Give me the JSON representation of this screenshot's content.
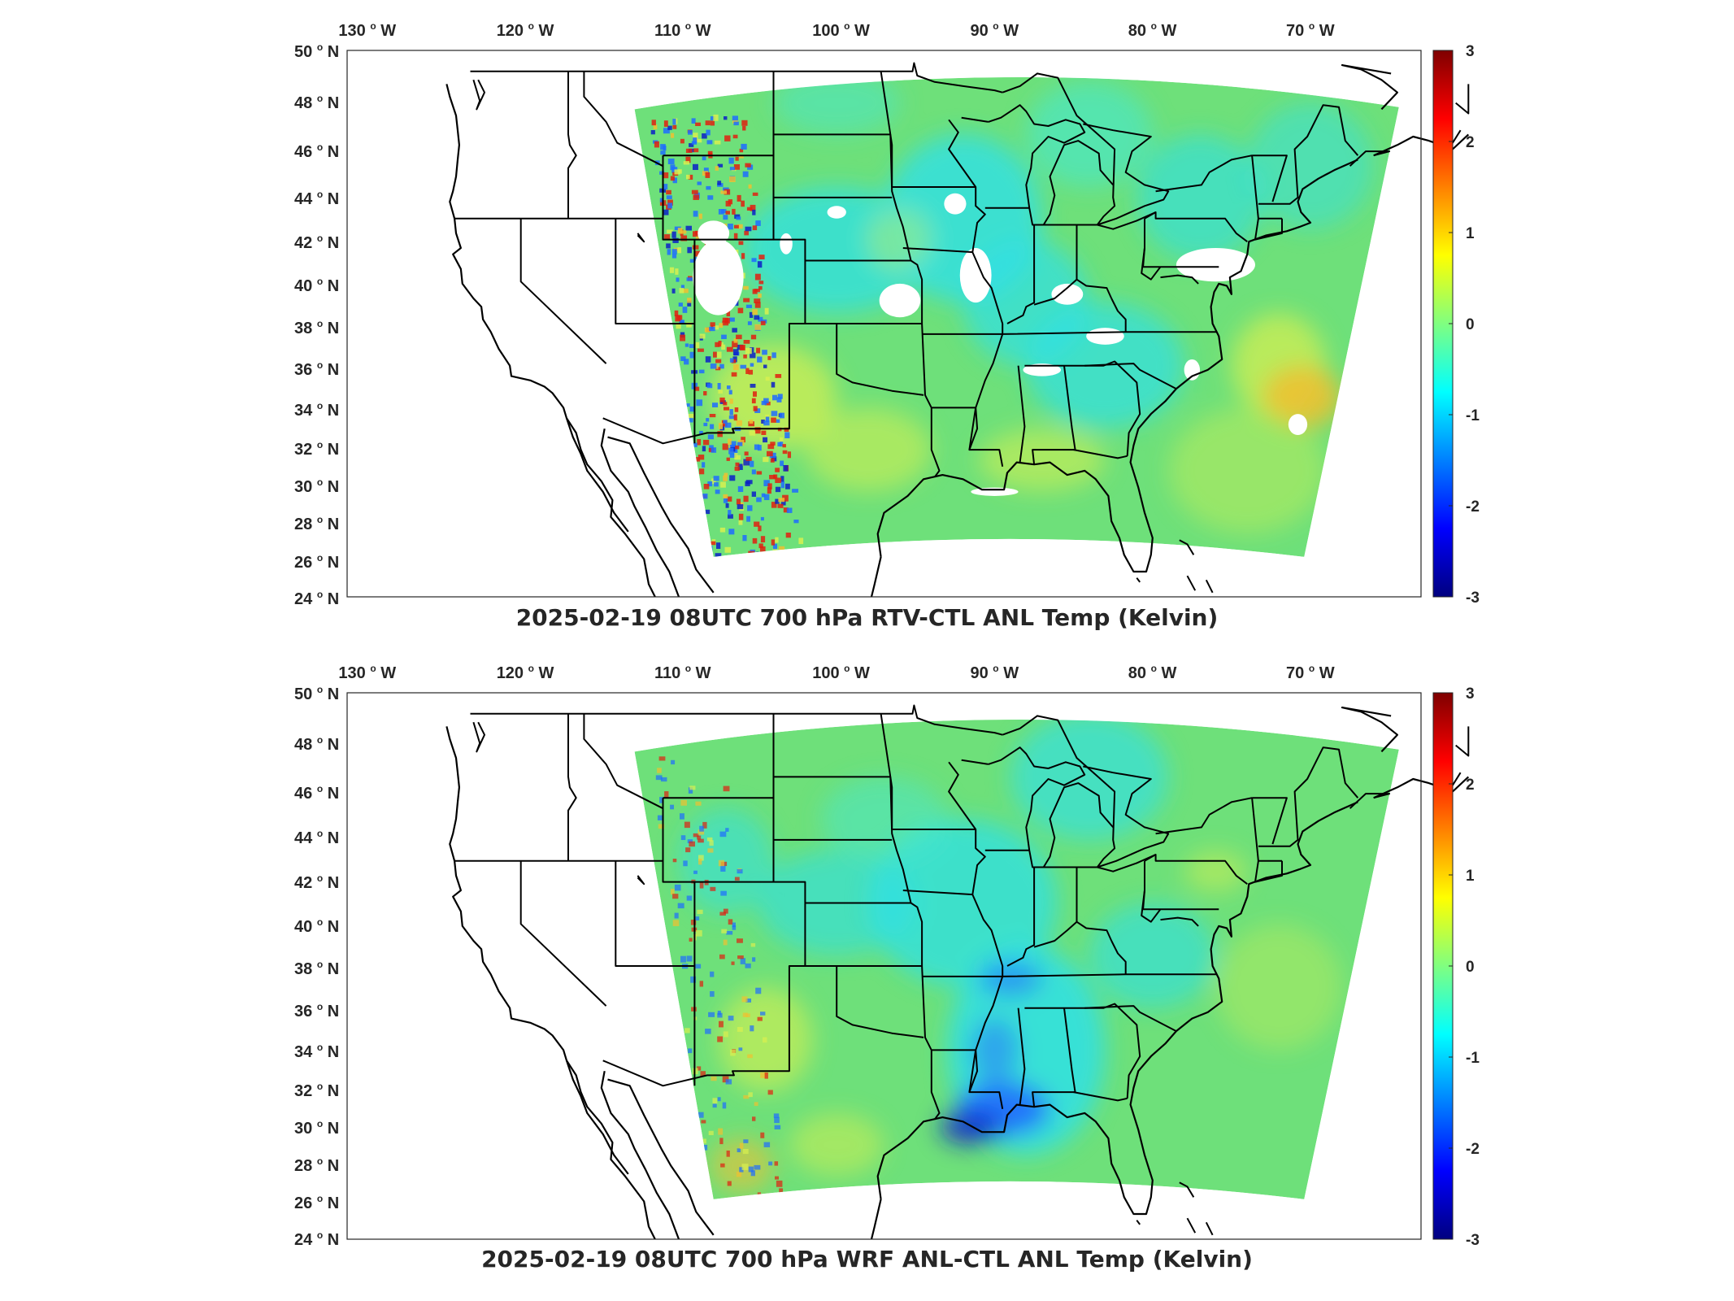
{
  "panels": [
    {
      "title": "2025-02-19 08UTC 700 hPa RTV-CTL ANL Temp (Kelvin)",
      "variant": "rtv"
    },
    {
      "title": "2025-02-19 08UTC 700 hPa WRF ANL-CTL ANL Temp (Kelvin)",
      "variant": "wrf"
    }
  ],
  "lon_ticks": [
    {
      "value": "130",
      "suffix": "W"
    },
    {
      "value": "120",
      "suffix": "W"
    },
    {
      "value": "110",
      "suffix": "W"
    },
    {
      "value": "100",
      "suffix": "W"
    },
    {
      "value": "90",
      "suffix": "W"
    },
    {
      "value": "80",
      "suffix": "W"
    },
    {
      "value": "70",
      "suffix": "W"
    }
  ],
  "lat_ticks": [
    {
      "value": "50",
      "suffix": "N"
    },
    {
      "value": "48",
      "suffix": "N"
    },
    {
      "value": "46",
      "suffix": "N"
    },
    {
      "value": "44",
      "suffix": "N"
    },
    {
      "value": "42",
      "suffix": "N"
    },
    {
      "value": "40",
      "suffix": "N"
    },
    {
      "value": "38",
      "suffix": "N"
    },
    {
      "value": "36",
      "suffix": "N"
    },
    {
      "value": "34",
      "suffix": "N"
    },
    {
      "value": "32",
      "suffix": "N"
    },
    {
      "value": "30",
      "suffix": "N"
    },
    {
      "value": "28",
      "suffix": "N"
    },
    {
      "value": "26",
      "suffix": "N"
    },
    {
      "value": "24",
      "suffix": "N"
    }
  ],
  "colorbar": {
    "ticks": [
      "3",
      "2",
      "1",
      "0",
      "-1",
      "-2",
      "-3"
    ],
    "min": -3,
    "max": 3,
    "colors": [
      "#00007f",
      "#0000ff",
      "#0080ff",
      "#00ffff",
      "#80ff80",
      "#ffff00",
      "#ff8000",
      "#ff0000",
      "#7f0000"
    ]
  },
  "field_colors": {
    "base": "#6ee07a",
    "cyan": "#2fe0e6",
    "light_cyan": "#45e8d0",
    "yellow": "#d8f050",
    "orange": "#f0c030",
    "blue": "#1e6cff",
    "dark_blue": "#0a1ec8",
    "red": "#e02010",
    "missing": "#ffffff"
  }
}
